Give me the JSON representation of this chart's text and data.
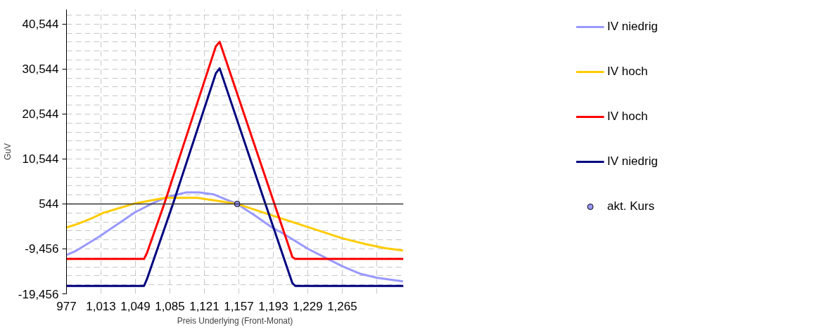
{
  "chart_data": {
    "type": "line",
    "xlabel": "Preis Underlying (Front-Monat)",
    "ylabel": "GuV",
    "xlim": [
      977,
      1329
    ],
    "ylim": [
      -19456,
      43800
    ],
    "xticks": [
      {
        "value": 977,
        "label": "977"
      },
      {
        "value": 1013,
        "label": "1,013"
      },
      {
        "value": 1049,
        "label": "1,049"
      },
      {
        "value": 1085,
        "label": "1,085"
      },
      {
        "value": 1121,
        "label": "1,121"
      },
      {
        "value": 1157,
        "label": "1,157"
      },
      {
        "value": 1193,
        "label": "1,193"
      },
      {
        "value": 1229,
        "label": "1,229"
      },
      {
        "value": 1265,
        "label": "1,265"
      },
      {
        "value": 1301,
        "label": null
      }
    ],
    "yticks": [
      {
        "value": -19456,
        "label": "-19,456"
      },
      {
        "value": -9456,
        "label": "-9,456"
      },
      {
        "value": 544,
        "label": "544"
      },
      {
        "value": 10544,
        "label": "10,544"
      },
      {
        "value": 20544,
        "label": "20,544"
      },
      {
        "value": 30544,
        "label": "30,544"
      },
      {
        "value": 40544,
        "label": "40,544"
      }
    ],
    "grid": true,
    "legend": "right",
    "marker": "none",
    "line_style": "solid",
    "ref_lines": [
      {
        "axis": "y",
        "value": 544,
        "color": "#333333"
      }
    ],
    "series": [
      {
        "name": "IV niedrig",
        "color": "#9999ff",
        "x": [
          977,
          986,
          1010.6,
          1035,
          1048.7,
          1069,
          1082.8,
          1101.8,
          1115.4,
          1130.4,
          1142.7,
          1155.3,
          1175,
          1193,
          1199.8,
          1229.7,
          1265,
          1284,
          1301.9,
          1328.5
        ],
        "values": [
          -10800,
          -10000,
          -6800,
          -3300,
          -1300,
          900,
          2100,
          3100,
          3100,
          2700,
          1600,
          544,
          -2200,
          -4900,
          -5600,
          -9500,
          -13300,
          -15000,
          -15900,
          -16700
        ]
      },
      {
        "name": "IV hoch",
        "color": "#ffcc00",
        "x": [
          977,
          988.8,
          1003.8,
          1014.7,
          1047.4,
          1062.3,
          1080,
          1114,
          1119.5,
          1135.8,
          1155.3,
          1193,
          1216.2,
          1265.2,
          1289.6,
          1310,
          1328.5
        ],
        "values": [
          -4700,
          -3900,
          -2600,
          -1500,
          600,
          1200,
          1900,
          1900,
          1700,
          1200,
          544,
          -2100,
          -3700,
          -7100,
          -8400,
          -9300,
          -9800
        ]
      },
      {
        "name": "IV hoch",
        "color": "#ff0000",
        "x": [
          977,
          1058,
          1061,
          1079.1,
          1133,
          1137,
          1194.2,
          1213,
          1216,
          1329
        ],
        "values": [
          -11700,
          -11700,
          -10400,
          544,
          35600,
          36600,
          544,
          -11300,
          -11700,
          -11700
        ]
      },
      {
        "name": "IV niedrig",
        "color": "#000080",
        "x": [
          977,
          1058,
          1061,
          1088.2,
          1133,
          1137,
          1184.8,
          1213,
          1216,
          1329
        ],
        "values": [
          -17700,
          -17700,
          -16200,
          544,
          29600,
          30700,
          544,
          -17100,
          -17700,
          -17700
        ]
      },
      {
        "name": "akt. Kurs",
        "type": "scatter",
        "marker": "circle",
        "color": "#9999ff",
        "x": [
          1155.3
        ],
        "values": [
          544
        ]
      }
    ]
  }
}
